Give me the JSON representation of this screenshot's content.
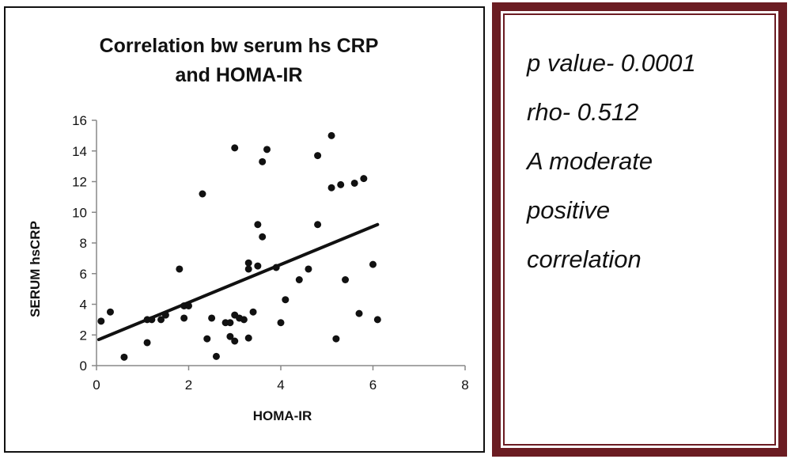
{
  "chart_data": {
    "type": "scatter",
    "title_lines": [
      "Correlation bw serum hs CRP",
      "and HOMA-IR"
    ],
    "xlabel": "HOMA-IR",
    "ylabel": "SERUM hsCRP",
    "xlim": [
      0,
      8
    ],
    "ylim": [
      0,
      16
    ],
    "x_ticks": [
      "0",
      "2",
      "4",
      "6",
      "8"
    ],
    "y_ticks": [
      "0",
      "2",
      "4",
      "6",
      "8",
      "10",
      "12",
      "14",
      "16"
    ],
    "grid": false,
    "legend": "none",
    "trendline": {
      "type": "linear",
      "x0": 0.05,
      "y0": 1.7,
      "x1": 6.1,
      "y1": 9.2
    },
    "points": [
      [
        0.1,
        2.9
      ],
      [
        0.3,
        3.5
      ],
      [
        0.6,
        0.55
      ],
      [
        1.1,
        1.5
      ],
      [
        1.1,
        3.0
      ],
      [
        1.2,
        3.0
      ],
      [
        1.4,
        3.0
      ],
      [
        1.5,
        3.3
      ],
      [
        1.8,
        6.3
      ],
      [
        1.9,
        3.1
      ],
      [
        1.9,
        3.9
      ],
      [
        2.0,
        3.9
      ],
      [
        2.3,
        11.2
      ],
      [
        2.4,
        1.75
      ],
      [
        2.5,
        3.1
      ],
      [
        2.6,
        0.6
      ],
      [
        2.8,
        2.8
      ],
      [
        2.9,
        2.8
      ],
      [
        2.9,
        1.9
      ],
      [
        3.0,
        1.6
      ],
      [
        3.0,
        3.3
      ],
      [
        3.0,
        14.2
      ],
      [
        3.1,
        3.1
      ],
      [
        3.2,
        3.0
      ],
      [
        3.3,
        1.8
      ],
      [
        3.3,
        6.3
      ],
      [
        3.3,
        6.7
      ],
      [
        3.4,
        3.5
      ],
      [
        3.5,
        6.5
      ],
      [
        3.5,
        9.2
      ],
      [
        3.6,
        8.4
      ],
      [
        3.6,
        13.3
      ],
      [
        3.7,
        14.1
      ],
      [
        3.9,
        6.4
      ],
      [
        4.0,
        2.8
      ],
      [
        4.1,
        4.3
      ],
      [
        4.4,
        5.6
      ],
      [
        4.6,
        6.3
      ],
      [
        4.8,
        9.2
      ],
      [
        4.8,
        13.7
      ],
      [
        5.1,
        11.6
      ],
      [
        5.1,
        15.0
      ],
      [
        5.2,
        1.75
      ],
      [
        5.3,
        11.8
      ],
      [
        5.4,
        5.6
      ],
      [
        5.6,
        11.9
      ],
      [
        5.7,
        3.4
      ],
      [
        5.8,
        12.2
      ],
      [
        6.0,
        6.6
      ],
      [
        6.1,
        3.0
      ]
    ],
    "colors": {
      "points": "#111111",
      "trendline": "#111111",
      "axis": "#888888"
    }
  },
  "stats_box": {
    "lines": [
      "p value- 0.0001",
      "rho- 0.512",
      "A moderate",
      "positive",
      "correlation"
    ],
    "border_color": "#6b1c22"
  }
}
